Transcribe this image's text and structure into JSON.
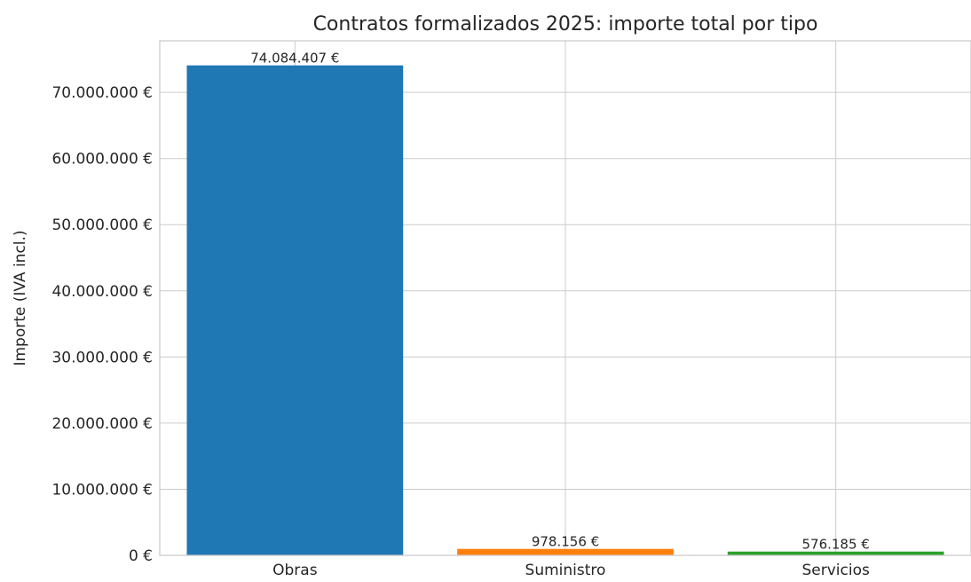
{
  "chart_data": {
    "type": "bar",
    "title": "Contratos formalizados 2025: importe total por tipo",
    "xlabel": "",
    "ylabel": "Importe (IVA incl.)",
    "categories": [
      "Obras",
      "Suministro",
      "Servicios"
    ],
    "values": [
      74084407,
      978156,
      576185
    ],
    "data_labels": [
      "74.084.407 €",
      "978.156 €",
      "576.185 €"
    ],
    "colors": [
      "#1f77b4",
      "#ff7f0e",
      "#2ca02c"
    ],
    "yticks": [
      0,
      10000000,
      20000000,
      30000000,
      40000000,
      50000000,
      60000000,
      70000000
    ],
    "ytick_labels": [
      "0 €",
      "10.000.000 €",
      "20.000.000 €",
      "30.000.000 €",
      "40.000.000 €",
      "50.000.000 €",
      "60.000.000 €",
      "70.000.000 €"
    ],
    "ylim": [
      0,
      77800000
    ],
    "grid": true,
    "legend": "none"
  }
}
